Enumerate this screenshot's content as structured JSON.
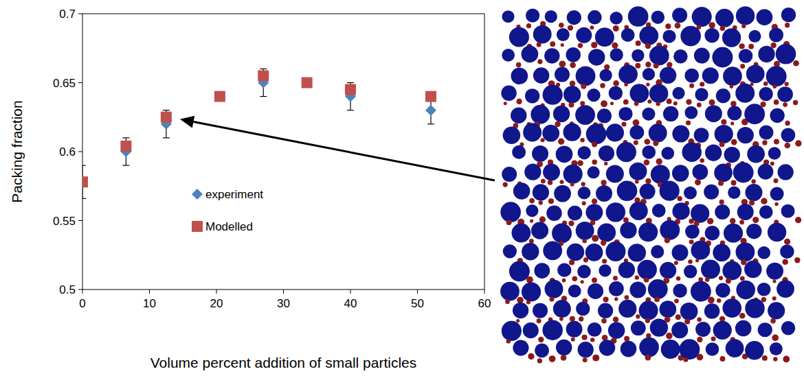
{
  "chart_data": {
    "type": "scatter",
    "x_label": "Volume percent addition of small particles",
    "y_label": "Packing fraction",
    "xlim": [
      0,
      60
    ],
    "xticks": [
      0,
      10,
      20,
      30,
      40,
      50,
      60
    ],
    "ylim": [
      0.5,
      0.7
    ],
    "yticks": [
      0.5,
      0.55,
      0.6,
      0.65,
      0.7
    ],
    "grid": false,
    "legend": "center",
    "series": [
      {
        "name": "experiment",
        "color": "#4f81bd",
        "marker": "diamond",
        "x": [
          0,
          6.5,
          12.5,
          27,
          40,
          52
        ],
        "values": [
          0.578,
          0.6,
          0.62,
          0.65,
          0.64,
          0.63
        ],
        "errors": [
          0.012,
          0.01,
          0.01,
          0.01,
          0.01,
          0.01
        ]
      },
      {
        "name": "Modelled",
        "color": "#c0504d",
        "marker": "square",
        "x": [
          0,
          6.5,
          12.5,
          20.5,
          27,
          33.5,
          40,
          52
        ],
        "values": [
          0.578,
          0.604,
          0.625,
          0.64,
          0.655,
          0.65,
          0.645,
          0.64
        ]
      }
    ]
  }
}
